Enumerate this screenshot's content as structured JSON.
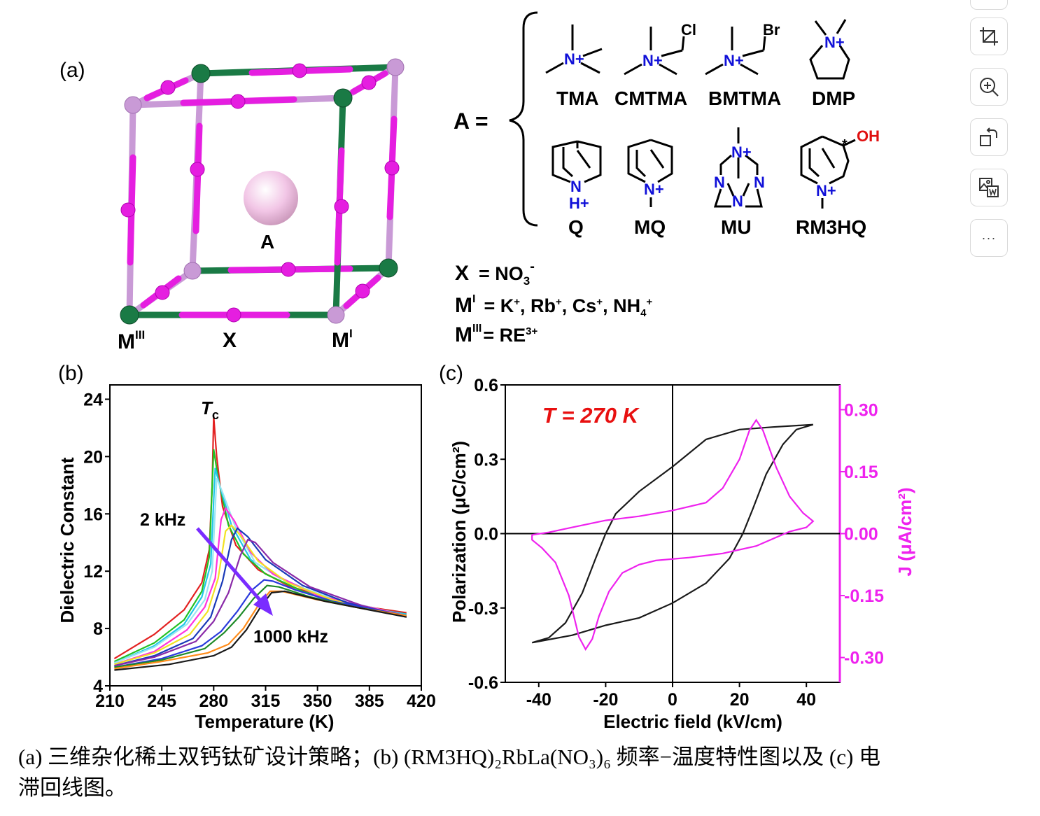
{
  "panel_a": {
    "label": "(a)",
    "site_A": "A",
    "site_X": "X",
    "site_M1": "M",
    "site_M1_sup": "I",
    "site_M3": "M",
    "site_M3_sup": "III",
    "eq_A": "A =",
    "cations_row1": [
      "TMA",
      "CMTMA",
      "BMTMA",
      "DMP"
    ],
    "cations_row2": [
      "Q",
      "MQ",
      "MU",
      "RM3HQ"
    ],
    "atoms": {
      "N": "N",
      "Nplus": "N+",
      "Hplus": "H+",
      "Cl": "Cl",
      "Br": "Br",
      "OH": "OH",
      "star": "*"
    },
    "x_def": "X = NO3-",
    "m1_def": "MI = K+, Rb+, Cs+, NH4+",
    "m3_def": "MIII= RE3+",
    "colors": {
      "M3": "#1a7a45",
      "M1": "#c99ad6",
      "X": "#e51ee0",
      "A": "#f2c6e6",
      "N_label": "#1010d8",
      "OH_label": "#e01010"
    }
  },
  "chart_data": [
    {
      "panel": "(b)",
      "type": "line",
      "xlabel": "Temperature (K)",
      "ylabel": "Dielectric Constant",
      "xlim": [
        210,
        420
      ],
      "ylim": [
        4,
        25
      ],
      "xticks": [
        210,
        245,
        280,
        315,
        350,
        385,
        420
      ],
      "yticks": [
        4,
        8,
        12,
        16,
        20,
        24
      ],
      "annotations": {
        "tc": "T",
        "tc_sub": "c",
        "low_freq": "2 kHz",
        "high_freq": "1000 kHz"
      },
      "arrow_color": "#7a2cff",
      "series": [
        {
          "color": "#e32222",
          "points": [
            [
              213,
              5.9
            ],
            [
              240,
              7.6
            ],
            [
              260,
              9.3
            ],
            [
              272,
              11.2
            ],
            [
              277,
              13.5
            ],
            [
              279,
              18
            ],
            [
              280,
              22.8
            ],
            [
              282,
              20
            ],
            [
              286,
              16.5
            ],
            [
              295,
              13.8
            ],
            [
              310,
              12.1
            ],
            [
              330,
              11
            ],
            [
              360,
              10
            ],
            [
              390,
              9.4
            ],
            [
              410,
              9.1
            ]
          ]
        },
        {
          "color": "#22c122",
          "points": [
            [
              213,
              5.7
            ],
            [
              240,
              7.0
            ],
            [
              260,
              8.6
            ],
            [
              272,
              10.6
            ],
            [
              277,
              13
            ],
            [
              280,
              20.5
            ],
            [
              283,
              18.5
            ],
            [
              290,
              15.2
            ],
            [
              300,
              13.2
            ],
            [
              315,
              11.8
            ],
            [
              340,
              10.6
            ],
            [
              370,
              9.7
            ],
            [
              410,
              9.0
            ]
          ]
        },
        {
          "color": "#22c8e8",
          "points": [
            [
              213,
              5.6
            ],
            [
              240,
              6.8
            ],
            [
              260,
              8.3
            ],
            [
              272,
              10.2
            ],
            [
              278,
              12.5
            ],
            [
              281,
              19.2
            ],
            [
              284,
              18
            ],
            [
              292,
              15.2
            ],
            [
              305,
              12.8
            ],
            [
              325,
              11.5
            ],
            [
              350,
              10.4
            ],
            [
              380,
              9.5
            ],
            [
              410,
              9.0
            ]
          ]
        },
        {
          "color": "#9ae6f2",
          "points": [
            [
              213,
              5.6
            ],
            [
              240,
              6.7
            ],
            [
              262,
              8.3
            ],
            [
              274,
              10
            ],
            [
              279,
              12
            ],
            [
              282,
              18.5
            ],
            [
              286,
              17.5
            ],
            [
              295,
              15
            ],
            [
              308,
              12.6
            ],
            [
              330,
              11.2
            ],
            [
              360,
              10.1
            ],
            [
              410,
              8.9
            ]
          ]
        },
        {
          "color": "#ff33dd",
          "points": [
            [
              213,
              5.5
            ],
            [
              240,
              6.4
            ],
            [
              262,
              7.9
            ],
            [
              274,
              9.5
            ],
            [
              281,
              11.5
            ],
            [
              285,
              15.6
            ],
            [
              288,
              16.4
            ],
            [
              294,
              15.5
            ],
            [
              305,
              13.3
            ],
            [
              320,
              11.8
            ],
            [
              350,
              10.3
            ],
            [
              410,
              8.9
            ]
          ]
        },
        {
          "color": "#f2e222",
          "points": [
            [
              213,
              5.5
            ],
            [
              240,
              6.3
            ],
            [
              264,
              7.6
            ],
            [
              276,
              9.2
            ],
            [
              283,
              11.5
            ],
            [
              288,
              14.8
            ],
            [
              292,
              15.2
            ],
            [
              298,
              14.5
            ],
            [
              310,
              12.7
            ],
            [
              330,
              11.2
            ],
            [
              360,
              10
            ],
            [
              410,
              8.8
            ]
          ]
        },
        {
          "color": "#1a3ab8",
          "points": [
            [
              213,
              5.4
            ],
            [
              240,
              6.1
            ],
            [
              266,
              7.3
            ],
            [
              278,
              8.8
            ],
            [
              286,
              11.3
            ],
            [
              292,
              14.2
            ],
            [
              296,
              15
            ],
            [
              303,
              14.4
            ],
            [
              315,
              12.8
            ],
            [
              340,
              11
            ],
            [
              370,
              9.8
            ],
            [
              410,
              8.8
            ]
          ]
        },
        {
          "color": "#8a2aa8",
          "points": [
            [
              213,
              5.4
            ],
            [
              240,
              6.0
            ],
            [
              268,
              7.1
            ],
            [
              280,
              8.5
            ],
            [
              290,
              10.5
            ],
            [
              298,
              13.1
            ],
            [
              303,
              14.2
            ],
            [
              308,
              14
            ],
            [
              320,
              12.6
            ],
            [
              345,
              10.9
            ],
            [
              380,
              9.6
            ],
            [
              410,
              8.8
            ]
          ]
        },
        {
          "color": "#2a3adc",
          "points": [
            [
              213,
              5.3
            ],
            [
              245,
              5.9
            ],
            [
              272,
              6.8
            ],
            [
              285,
              7.8
            ],
            [
              296,
              9.2
            ],
            [
              306,
              10.7
            ],
            [
              314,
              11.4
            ],
            [
              320,
              11.3
            ],
            [
              335,
              10.7
            ],
            [
              360,
              9.9
            ],
            [
              390,
              9.3
            ],
            [
              410,
              8.9
            ]
          ]
        },
        {
          "color": "#1e8a28",
          "points": [
            [
              213,
              5.3
            ],
            [
              245,
              5.8
            ],
            [
              274,
              6.6
            ],
            [
              287,
              7.7
            ],
            [
              297,
              8.8
            ],
            [
              307,
              10.1
            ],
            [
              316,
              11
            ],
            [
              324,
              10.9
            ],
            [
              345,
              10.2
            ],
            [
              375,
              9.5
            ],
            [
              410,
              8.9
            ]
          ]
        },
        {
          "color": "#ff8c1a",
          "points": [
            [
              213,
              5.2
            ],
            [
              245,
              5.7
            ],
            [
              276,
              6.3
            ],
            [
              290,
              6.9
            ],
            [
              300,
              8
            ],
            [
              310,
              9.6
            ],
            [
              318,
              10.6
            ],
            [
              326,
              10.6
            ],
            [
              350,
              10
            ],
            [
              380,
              9.4
            ],
            [
              410,
              8.9
            ]
          ]
        },
        {
          "color": "#1a1a1a",
          "points": [
            [
              213,
              5.1
            ],
            [
              250,
              5.5
            ],
            [
              280,
              6.1
            ],
            [
              292,
              6.7
            ],
            [
              302,
              7.9
            ],
            [
              311,
              9.4
            ],
            [
              319,
              10.5
            ],
            [
              328,
              10.6
            ],
            [
              355,
              9.9
            ],
            [
              385,
              9.3
            ],
            [
              410,
              8.8
            ]
          ]
        }
      ]
    },
    {
      "panel": "(c)",
      "type": "line",
      "xlabel": "Electric field (kV/cm)",
      "ylabel": "Polarization (μC/cm²)",
      "y2label": "J (μA/cm²)",
      "xlim": [
        -50,
        50
      ],
      "ylim": [
        -0.6,
        0.6
      ],
      "y2lim": [
        -0.36,
        0.36
      ],
      "xticks": [
        -40,
        -20,
        0,
        20,
        40
      ],
      "yticks": [
        -0.6,
        -0.3,
        0.0,
        0.3,
        0.6
      ],
      "yticklabels": [
        "-0.6",
        "-0.3",
        "0.0",
        "0.3",
        "0.6"
      ],
      "y2ticks": [
        -0.3,
        -0.15,
        0.0,
        0.15,
        0.3
      ],
      "y2ticklabels": [
        "-0.30",
        "-0.15",
        "0.00",
        "0.15",
        "0.30"
      ],
      "annotation": "T = 270 K",
      "series": [
        {
          "name": "P",
          "axis": "y",
          "color": "#1a1a1a",
          "points": [
            [
              -42,
              -0.44
            ],
            [
              -30,
              -0.41
            ],
            [
              -20,
              -0.37
            ],
            [
              -10,
              -0.34
            ],
            [
              0,
              -0.28
            ],
            [
              10,
              -0.2
            ],
            [
              17,
              -0.1
            ],
            [
              21,
              0
            ],
            [
              24,
              0.1
            ],
            [
              28,
              0.24
            ],
            [
              33,
              0.36
            ],
            [
              37,
              0.42
            ],
            [
              42,
              0.44
            ],
            [
              30,
              0.43
            ],
            [
              20,
              0.42
            ],
            [
              10,
              0.38
            ],
            [
              0,
              0.27
            ],
            [
              -10,
              0.17
            ],
            [
              -17,
              0.08
            ],
            [
              -20,
              0
            ],
            [
              -23,
              -0.1
            ],
            [
              -27,
              -0.24
            ],
            [
              -32,
              -0.36
            ],
            [
              -37,
              -0.42
            ],
            [
              -42,
              -0.44
            ]
          ]
        },
        {
          "name": "J",
          "axis": "y2",
          "color": "#ee22ee",
          "points": [
            [
              -42,
              -0.003
            ],
            [
              -37,
              0.003
            ],
            [
              -30,
              0.015
            ],
            [
              -20,
              0.032
            ],
            [
              -10,
              0.042
            ],
            [
              0,
              0.056
            ],
            [
              10,
              0.075
            ],
            [
              15,
              0.11
            ],
            [
              20,
              0.18
            ],
            [
              23,
              0.25
            ],
            [
              25,
              0.275
            ],
            [
              27,
              0.25
            ],
            [
              31,
              0.16
            ],
            [
              35,
              0.09
            ],
            [
              39,
              0.05
            ],
            [
              42,
              0.03
            ],
            [
              40,
              0.015
            ],
            [
              35,
              0.005
            ],
            [
              25,
              -0.03
            ],
            [
              15,
              -0.048
            ],
            [
              5,
              -0.058
            ],
            [
              -5,
              -0.065
            ],
            [
              -10,
              -0.075
            ],
            [
              -15,
              -0.095
            ],
            [
              -19,
              -0.14
            ],
            [
              -22,
              -0.2
            ],
            [
              -24,
              -0.255
            ],
            [
              -26,
              -0.28
            ],
            [
              -28,
              -0.25
            ],
            [
              -31,
              -0.15
            ],
            [
              -35,
              -0.07
            ],
            [
              -39,
              -0.035
            ],
            [
              -42,
              -0.015
            ],
            [
              -42,
              -0.003
            ]
          ]
        }
      ]
    }
  ],
  "caption": {
    "line1": "(a) 三维杂化稀土双钙钛矿设计策略；(b) (RM3HQ)₂RbLa(NO₃)₆ 频率−温度特性图以及 (c) 电",
    "line2": "滞回线图。"
  },
  "toolbar": {
    "items": [
      "crop-icon",
      "zoom-in-icon",
      "rotate-icon",
      "image-to-word-icon",
      "more-icon"
    ],
    "more_label": "···"
  }
}
